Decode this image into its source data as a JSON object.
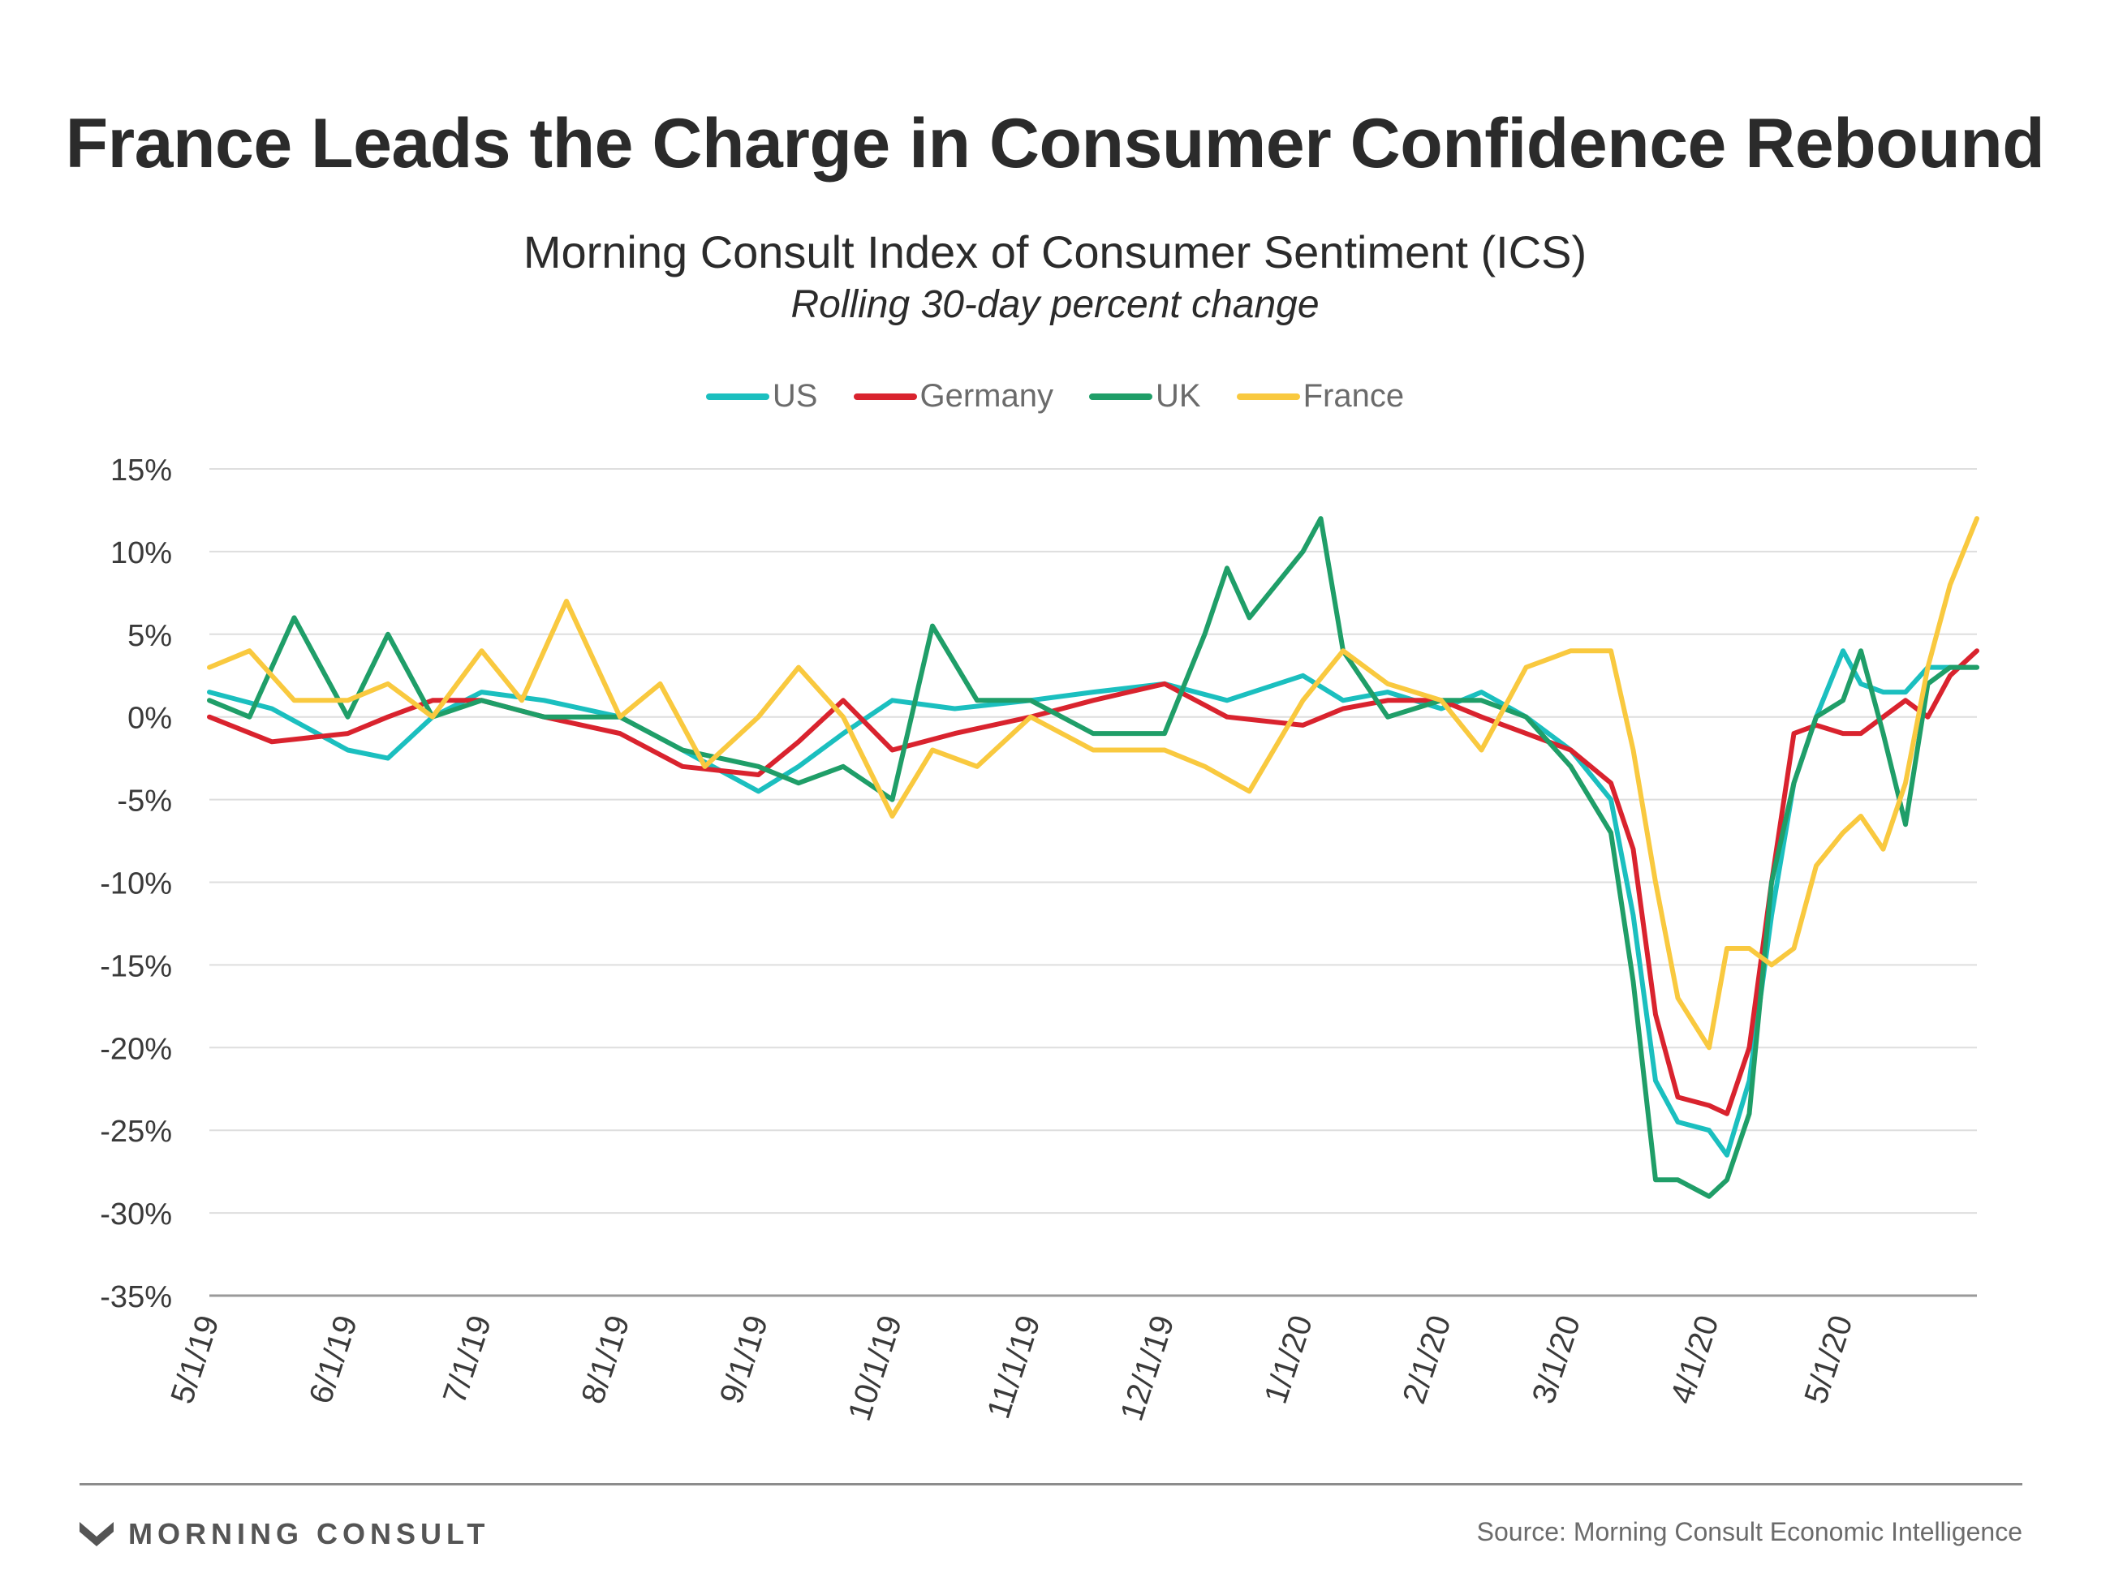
{
  "header": {
    "title": "France Leads the Charge in Consumer Confidence Rebound",
    "subtitle": "Morning Consult Index of Consumer Sentiment (ICS)",
    "subtitle2": "Rolling 30-day percent change"
  },
  "footer": {
    "brand": "MORNING CONSULT",
    "source": "Source: Morning Consult Economic Intelligence"
  },
  "chart_data": {
    "type": "line",
    "title": "France Leads the Charge in Consumer Confidence Rebound",
    "subtitle": "Morning Consult Index of Consumer Sentiment (ICS)",
    "ylabel": "",
    "xlabel": "",
    "ylim": [
      -35,
      15
    ],
    "y_ticks": [
      15,
      10,
      5,
      0,
      -5,
      -10,
      -15,
      -20,
      -25,
      -30,
      -35
    ],
    "y_tick_labels": [
      "15%",
      "10%",
      "5%",
      "0%",
      "-5%",
      "-10%",
      "-15%",
      "-20%",
      "-25%",
      "-30%",
      "-35%"
    ],
    "x_range": [
      "2019-05-01",
      "2020-05-31"
    ],
    "x_ticks": [
      "2019-05-01",
      "2019-06-01",
      "2019-07-01",
      "2019-08-01",
      "2019-09-01",
      "2019-10-01",
      "2019-11-01",
      "2019-12-01",
      "2020-01-01",
      "2020-02-01",
      "2020-03-01",
      "2020-04-01",
      "2020-05-01"
    ],
    "x_tick_labels": [
      "5/1/19",
      "6/1/19",
      "7/1/19",
      "8/1/19",
      "9/1/19",
      "10/1/19",
      "11/1/19",
      "12/1/19",
      "1/1/20",
      "2/1/20",
      "3/1/20",
      "4/1/20",
      "5/1/20"
    ],
    "grid": "horizontal",
    "legend_position": "top-center",
    "series": [
      {
        "name": "US",
        "color": "#1bbfbf",
        "x": [
          "2019-05-01",
          "2019-05-15",
          "2019-06-01",
          "2019-06-10",
          "2019-06-20",
          "2019-07-01",
          "2019-07-15",
          "2019-08-01",
          "2019-08-15",
          "2019-09-01",
          "2019-09-10",
          "2019-09-20",
          "2019-10-01",
          "2019-10-15",
          "2019-11-01",
          "2019-11-15",
          "2019-12-01",
          "2019-12-15",
          "2020-01-01",
          "2020-01-10",
          "2020-01-20",
          "2020-02-01",
          "2020-02-10",
          "2020-02-20",
          "2020-03-01",
          "2020-03-10",
          "2020-03-15",
          "2020-03-20",
          "2020-03-25",
          "2020-04-01",
          "2020-04-05",
          "2020-04-10",
          "2020-04-15",
          "2020-04-20",
          "2020-04-25",
          "2020-05-01",
          "2020-05-05",
          "2020-05-10",
          "2020-05-15",
          "2020-05-20",
          "2020-05-25",
          "2020-05-31"
        ],
        "values": [
          1.5,
          0.5,
          -2,
          -2.5,
          0,
          1.5,
          1,
          0,
          -2,
          -4.5,
          -3,
          -1,
          1,
          0.5,
          1,
          1.5,
          2,
          1,
          2.5,
          1,
          1.5,
          0.5,
          1.5,
          0,
          -2,
          -5,
          -12,
          -22,
          -24.5,
          -25,
          -26.5,
          -22,
          -12,
          -4,
          0,
          4,
          2,
          1.5,
          1.5,
          3,
          3,
          3
        ]
      },
      {
        "name": "Germany",
        "color": "#d9232e",
        "x": [
          "2019-05-01",
          "2019-05-15",
          "2019-06-01",
          "2019-06-10",
          "2019-06-20",
          "2019-07-01",
          "2019-07-15",
          "2019-08-01",
          "2019-08-15",
          "2019-09-01",
          "2019-09-10",
          "2019-09-20",
          "2019-10-01",
          "2019-10-15",
          "2019-11-01",
          "2019-11-15",
          "2019-12-01",
          "2019-12-15",
          "2020-01-01",
          "2020-01-10",
          "2020-01-20",
          "2020-02-01",
          "2020-02-10",
          "2020-02-20",
          "2020-03-01",
          "2020-03-10",
          "2020-03-15",
          "2020-03-20",
          "2020-03-25",
          "2020-04-01",
          "2020-04-05",
          "2020-04-10",
          "2020-04-15",
          "2020-04-20",
          "2020-04-25",
          "2020-05-01",
          "2020-05-05",
          "2020-05-10",
          "2020-05-15",
          "2020-05-20",
          "2020-05-25",
          "2020-05-31"
        ],
        "values": [
          0,
          -1.5,
          -1,
          0,
          1,
          1,
          0,
          -1,
          -3,
          -3.5,
          -1.5,
          1,
          -2,
          -1,
          0,
          1,
          2,
          0,
          -0.5,
          0.5,
          1,
          1,
          0,
          -1,
          -2,
          -4,
          -8,
          -18,
          -23,
          -23.5,
          -24,
          -20,
          -10,
          -1,
          -0.5,
          -1,
          -1,
          0,
          1,
          0,
          2.5,
          4
        ]
      },
      {
        "name": "UK",
        "color": "#1f9e68",
        "x": [
          "2019-05-01",
          "2019-05-10",
          "2019-05-20",
          "2019-06-01",
          "2019-06-10",
          "2019-06-20",
          "2019-07-01",
          "2019-07-15",
          "2019-08-01",
          "2019-08-15",
          "2019-09-01",
          "2019-09-10",
          "2019-09-20",
          "2019-10-01",
          "2019-10-10",
          "2019-10-20",
          "2019-11-01",
          "2019-11-15",
          "2019-12-01",
          "2019-12-10",
          "2019-12-15",
          "2019-12-20",
          "2020-01-01",
          "2020-01-05",
          "2020-01-10",
          "2020-01-20",
          "2020-02-01",
          "2020-02-10",
          "2020-02-20",
          "2020-03-01",
          "2020-03-10",
          "2020-03-15",
          "2020-03-20",
          "2020-03-25",
          "2020-04-01",
          "2020-04-05",
          "2020-04-10",
          "2020-04-15",
          "2020-04-20",
          "2020-04-25",
          "2020-05-01",
          "2020-05-05",
          "2020-05-10",
          "2020-05-15",
          "2020-05-20",
          "2020-05-25",
          "2020-05-31"
        ],
        "values": [
          1,
          0,
          6,
          0,
          5,
          0,
          1,
          0,
          0,
          -2,
          -3,
          -4,
          -3,
          -5,
          5.5,
          1,
          1,
          -1,
          -1,
          5,
          9,
          6,
          10,
          12,
          4,
          0,
          1,
          1,
          0,
          -3,
          -7,
          -16,
          -28,
          -28,
          -29,
          -28,
          -24,
          -10,
          -4,
          0,
          1,
          4,
          -1,
          -6.5,
          2,
          3,
          3
        ]
      },
      {
        "name": "France",
        "color": "#f9c93f",
        "x": [
          "2019-05-01",
          "2019-05-10",
          "2019-05-20",
          "2019-06-01",
          "2019-06-10",
          "2019-06-20",
          "2019-07-01",
          "2019-07-10",
          "2019-07-20",
          "2019-08-01",
          "2019-08-10",
          "2019-08-20",
          "2019-09-01",
          "2019-09-10",
          "2019-09-20",
          "2019-10-01",
          "2019-10-10",
          "2019-10-20",
          "2019-11-01",
          "2019-11-15",
          "2019-12-01",
          "2019-12-10",
          "2019-12-20",
          "2020-01-01",
          "2020-01-10",
          "2020-01-20",
          "2020-02-01",
          "2020-02-10",
          "2020-02-20",
          "2020-03-01",
          "2020-03-10",
          "2020-03-15",
          "2020-03-20",
          "2020-03-25",
          "2020-04-01",
          "2020-04-05",
          "2020-04-10",
          "2020-04-15",
          "2020-04-20",
          "2020-04-25",
          "2020-05-01",
          "2020-05-05",
          "2020-05-10",
          "2020-05-15",
          "2020-05-20",
          "2020-05-25",
          "2020-05-31"
        ],
        "values": [
          3,
          4,
          1,
          1,
          2,
          0,
          4,
          1,
          7,
          0,
          2,
          -3,
          0,
          3,
          0,
          -6,
          -2,
          -3,
          0,
          -2,
          -2,
          -3,
          -4.5,
          1,
          4,
          2,
          1,
          -2,
          3,
          4,
          4,
          -2,
          -10,
          -17,
          -20,
          -14,
          -14,
          -15,
          -14,
          -9,
          -7,
          -6,
          -8,
          -4,
          3,
          8,
          12
        ]
      }
    ]
  }
}
